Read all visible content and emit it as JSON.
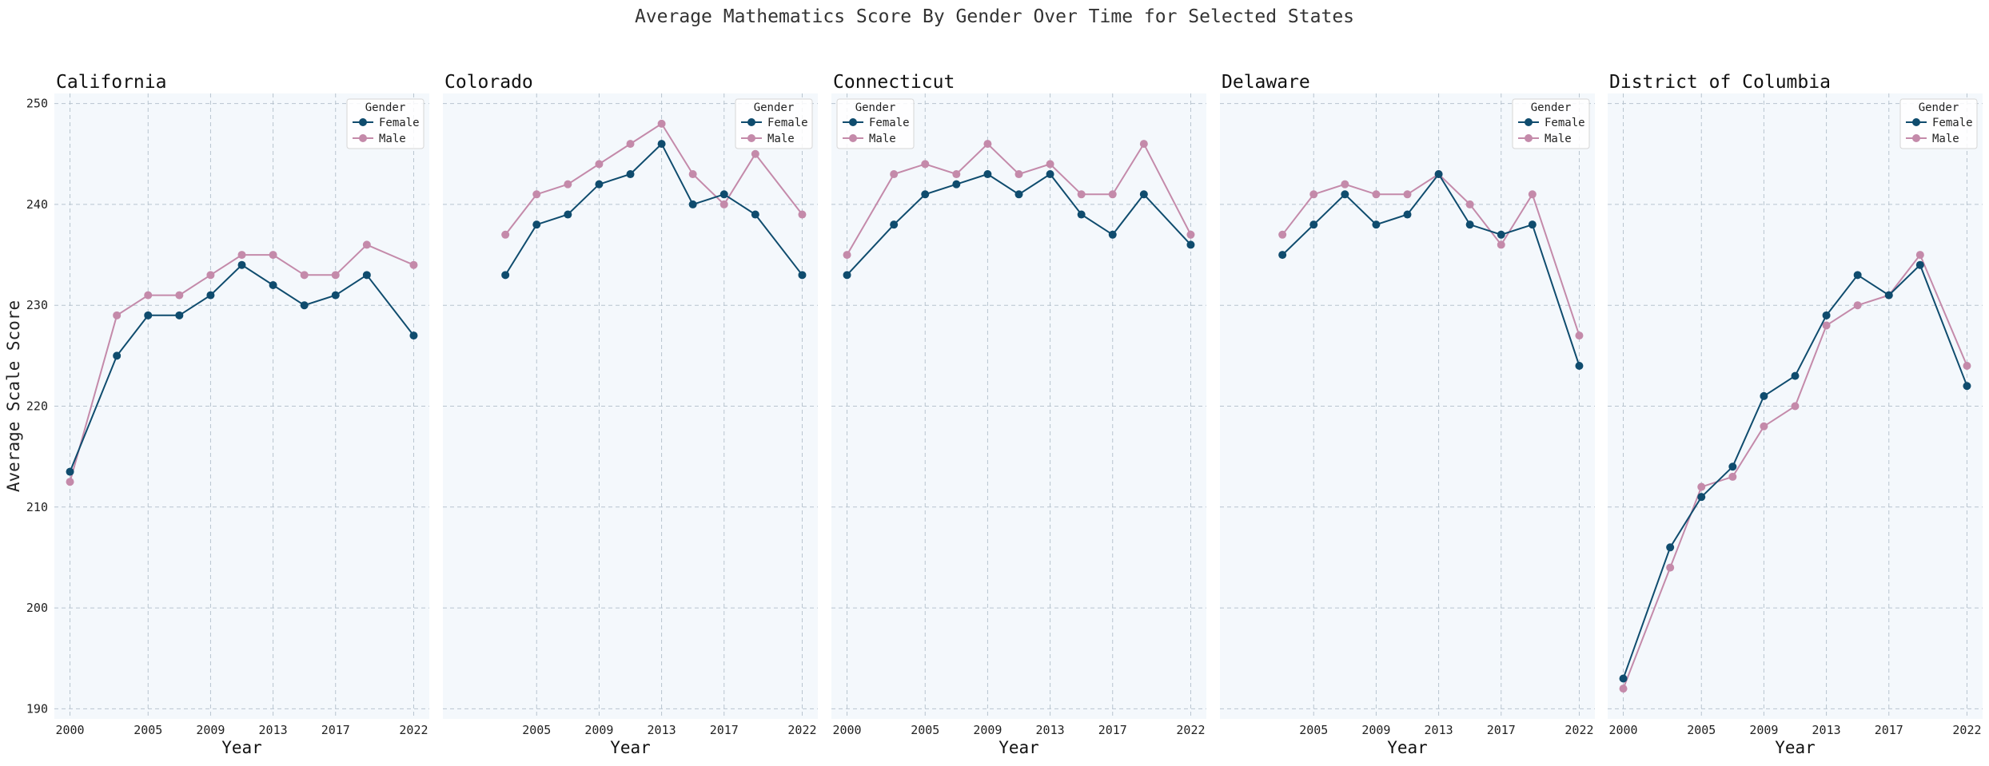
{
  "figure": {
    "suptitle": "Average Mathematics Score By Gender Over Time for Selected States",
    "ylabel": "Average Scale Score",
    "xlabel": "Year"
  },
  "legend": {
    "title": "Gender",
    "entries": [
      "Female",
      "Male"
    ]
  },
  "colors": {
    "Female": "#0f4c6e",
    "Male": "#c48aaa",
    "panel_bg": "#f4f8fc",
    "grid": "#b8c4cf"
  },
  "chart_data": [
    {
      "type": "line",
      "title": "California",
      "xlabel": "Year",
      "ylabel": "Average Scale Score",
      "x": [
        2000,
        2003,
        2005,
        2007,
        2009,
        2011,
        2013,
        2015,
        2017,
        2019,
        2022
      ],
      "xticks": [
        2000,
        2005,
        2009,
        2013,
        2017,
        2022
      ],
      "ylim": [
        189,
        251
      ],
      "yticks": [
        190,
        200,
        210,
        220,
        230,
        240,
        250
      ],
      "grid": true,
      "legend_position": "top-right",
      "series": [
        {
          "name": "Female",
          "values": [
            213.5,
            225,
            229,
            229,
            231,
            234,
            232,
            230,
            231,
            233,
            227
          ]
        },
        {
          "name": "Male",
          "values": [
            212.5,
            229,
            231,
            231,
            233,
            235,
            235,
            233,
            233,
            236,
            234
          ]
        }
      ]
    },
    {
      "type": "line",
      "title": "Colorado",
      "xlabel": "Year",
      "x": [
        2003,
        2005,
        2007,
        2009,
        2011,
        2013,
        2015,
        2017,
        2019,
        2022
      ],
      "xticks": [
        2005,
        2009,
        2013,
        2017,
        2022
      ],
      "ylim": [
        189,
        251
      ],
      "grid": true,
      "legend_position": "top-right",
      "series": [
        {
          "name": "Female",
          "values": [
            233,
            238,
            239,
            242,
            243,
            246,
            240,
            241,
            239,
            233
          ]
        },
        {
          "name": "Male",
          "values": [
            237,
            241,
            242,
            244,
            246,
            248,
            243,
            240,
            245,
            239
          ]
        }
      ]
    },
    {
      "type": "line",
      "title": "Connecticut",
      "xlabel": "Year",
      "x": [
        2000,
        2003,
        2005,
        2007,
        2009,
        2011,
        2013,
        2015,
        2017,
        2019,
        2022
      ],
      "xticks": [
        2000,
        2005,
        2009,
        2013,
        2017,
        2022
      ],
      "ylim": [
        189,
        251
      ],
      "grid": true,
      "legend_position": "top-left",
      "series": [
        {
          "name": "Female",
          "values": [
            233,
            238,
            241,
            242,
            243,
            241,
            243,
            239,
            237,
            241,
            236
          ]
        },
        {
          "name": "Male",
          "values": [
            235,
            243,
            244,
            243,
            246,
            243,
            244,
            241,
            241,
            246,
            237
          ]
        }
      ]
    },
    {
      "type": "line",
      "title": "Delaware",
      "xlabel": "Year",
      "x": [
        2003,
        2005,
        2007,
        2009,
        2011,
        2013,
        2015,
        2017,
        2019,
        2022
      ],
      "xticks": [
        2005,
        2009,
        2013,
        2017,
        2022
      ],
      "ylim": [
        189,
        251
      ],
      "grid": true,
      "legend_position": "top-right",
      "series": [
        {
          "name": "Female",
          "values": [
            235,
            238,
            241,
            238,
            239,
            243,
            238,
            237,
            238,
            224
          ]
        },
        {
          "name": "Male",
          "values": [
            237,
            241,
            242,
            241,
            241,
            243,
            240,
            236,
            241,
            227
          ]
        }
      ]
    },
    {
      "type": "line",
      "title": "District of Columbia",
      "xlabel": "Year",
      "x": [
        2000,
        2003,
        2005,
        2007,
        2009,
        2011,
        2013,
        2015,
        2017,
        2019,
        2022
      ],
      "xticks": [
        2000,
        2005,
        2009,
        2013,
        2017,
        2022
      ],
      "ylim": [
        189,
        251
      ],
      "grid": true,
      "legend_position": "top-right",
      "series": [
        {
          "name": "Female",
          "values": [
            193,
            206,
            211,
            214,
            221,
            223,
            229,
            233,
            231,
            234,
            222
          ]
        },
        {
          "name": "Male",
          "values": [
            192,
            204,
            212,
            213,
            218,
            220,
            228,
            230,
            231,
            235,
            224
          ]
        }
      ]
    }
  ]
}
